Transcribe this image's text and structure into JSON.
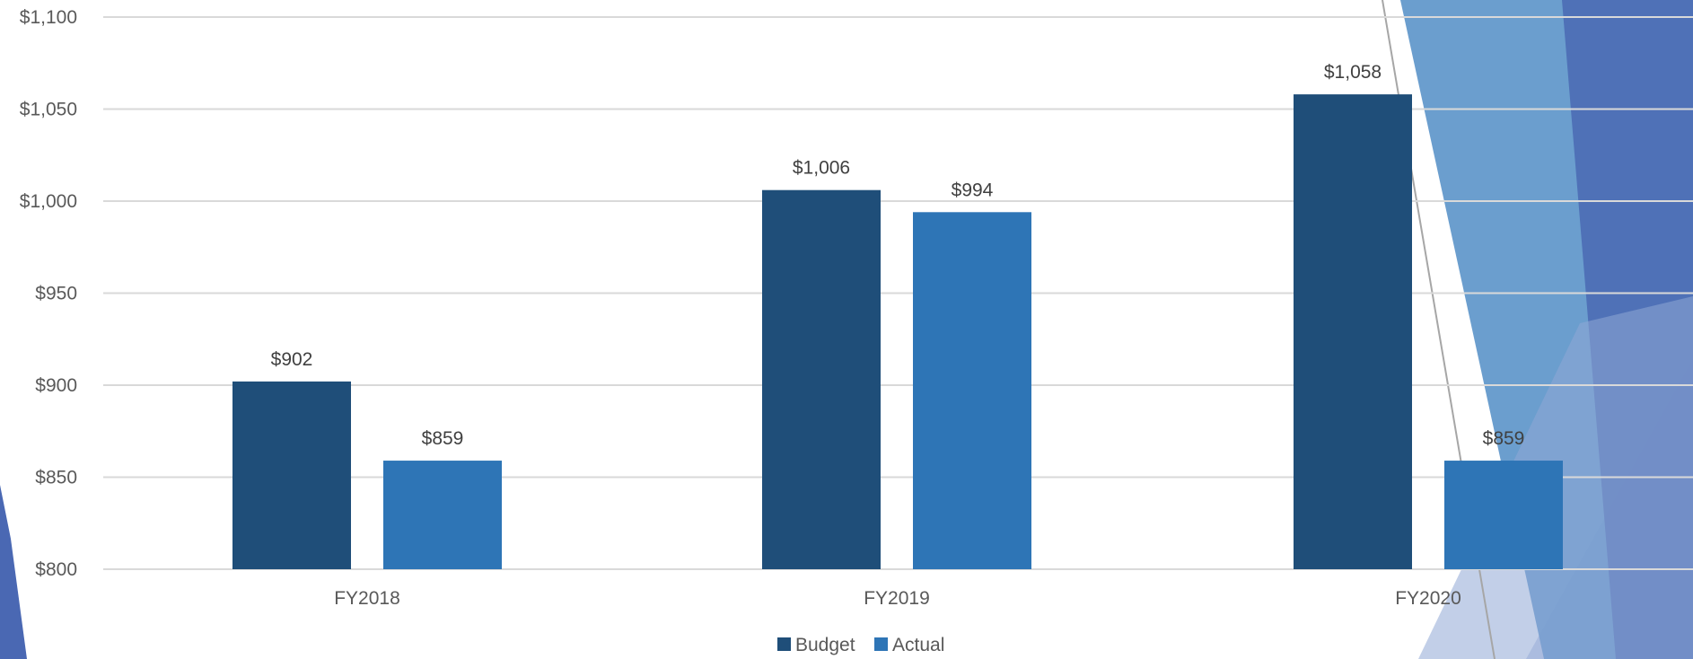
{
  "colors": {
    "budget": "#1f4e79",
    "actual": "#2e75b6",
    "grid": "#d9d9d9",
    "deco_dark": "#4a68b3",
    "deco_mid": "#5b93c9",
    "deco_light": "#c3cce6"
  },
  "chart_data": {
    "type": "bar",
    "categories": [
      "FY2018",
      "FY2019",
      "FY2020"
    ],
    "series": [
      {
        "name": "Budget",
        "values": [
          902,
          1006,
          1058
        ],
        "labels": [
          "$902",
          "$1,006",
          "$1,058"
        ]
      },
      {
        "name": "Actual",
        "values": [
          859,
          994,
          859
        ],
        "labels": [
          "$859",
          "$994",
          "$859"
        ]
      }
    ],
    "ylim": [
      800,
      1100
    ],
    "yticks": [
      800,
      850,
      900,
      950,
      1000,
      1050,
      1100
    ],
    "ytick_labels": [
      "$800",
      "$850",
      "$900",
      "$950",
      "$1,000",
      "$1,050",
      "$1,100"
    ],
    "grid": true,
    "legend": "bottom"
  }
}
